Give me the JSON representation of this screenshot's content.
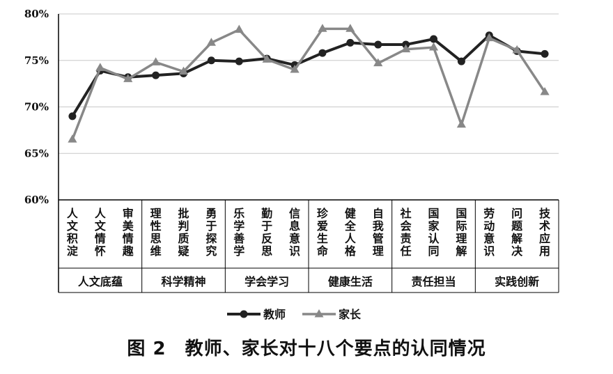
{
  "chart_data": {
    "type": "line",
    "ylim": [
      0.6,
      0.8
    ],
    "y_ticks": [
      "60%",
      "65%",
      "70%",
      "75%",
      "80%"
    ],
    "y_tick_values": [
      0.6,
      0.65,
      0.7,
      0.75,
      0.8
    ],
    "grid": "horizontal",
    "legend_position": "bottom",
    "categories": [
      "人文积淀",
      "人文情怀",
      "审美情趣",
      "理性思维",
      "批判质疑",
      "勇于探究",
      "乐学善学",
      "勤于反思",
      "信息意识",
      "珍爱生命",
      "健全人格",
      "自我管理",
      "社会责任",
      "国家认同",
      "国际理解",
      "劳动意识",
      "问题解决",
      "技术应用"
    ],
    "groups": [
      {
        "label": "人文底蕴",
        "span": 3
      },
      {
        "label": "科学精神",
        "span": 3
      },
      {
        "label": "学会学习",
        "span": 3
      },
      {
        "label": "健康生活",
        "span": 3
      },
      {
        "label": "责任担当",
        "span": 3
      },
      {
        "label": "实践创新",
        "span": 3
      }
    ],
    "series": [
      {
        "name": "教师",
        "color": "#222222",
        "marker": "circle",
        "values": [
          0.69,
          0.739,
          0.732,
          0.734,
          0.736,
          0.75,
          0.749,
          0.752,
          0.745,
          0.758,
          0.769,
          0.767,
          0.767,
          0.773,
          0.749,
          0.777,
          0.76,
          0.757
        ]
      },
      {
        "name": "家长",
        "color": "#888888",
        "marker": "triangle",
        "values": [
          0.665,
          0.742,
          0.73,
          0.748,
          0.738,
          0.769,
          0.783,
          0.751,
          0.74,
          0.784,
          0.784,
          0.747,
          0.762,
          0.764,
          0.681,
          0.774,
          0.761,
          0.716
        ]
      }
    ]
  },
  "caption": "图 2　教师、家长对十八个要点的认同情况"
}
